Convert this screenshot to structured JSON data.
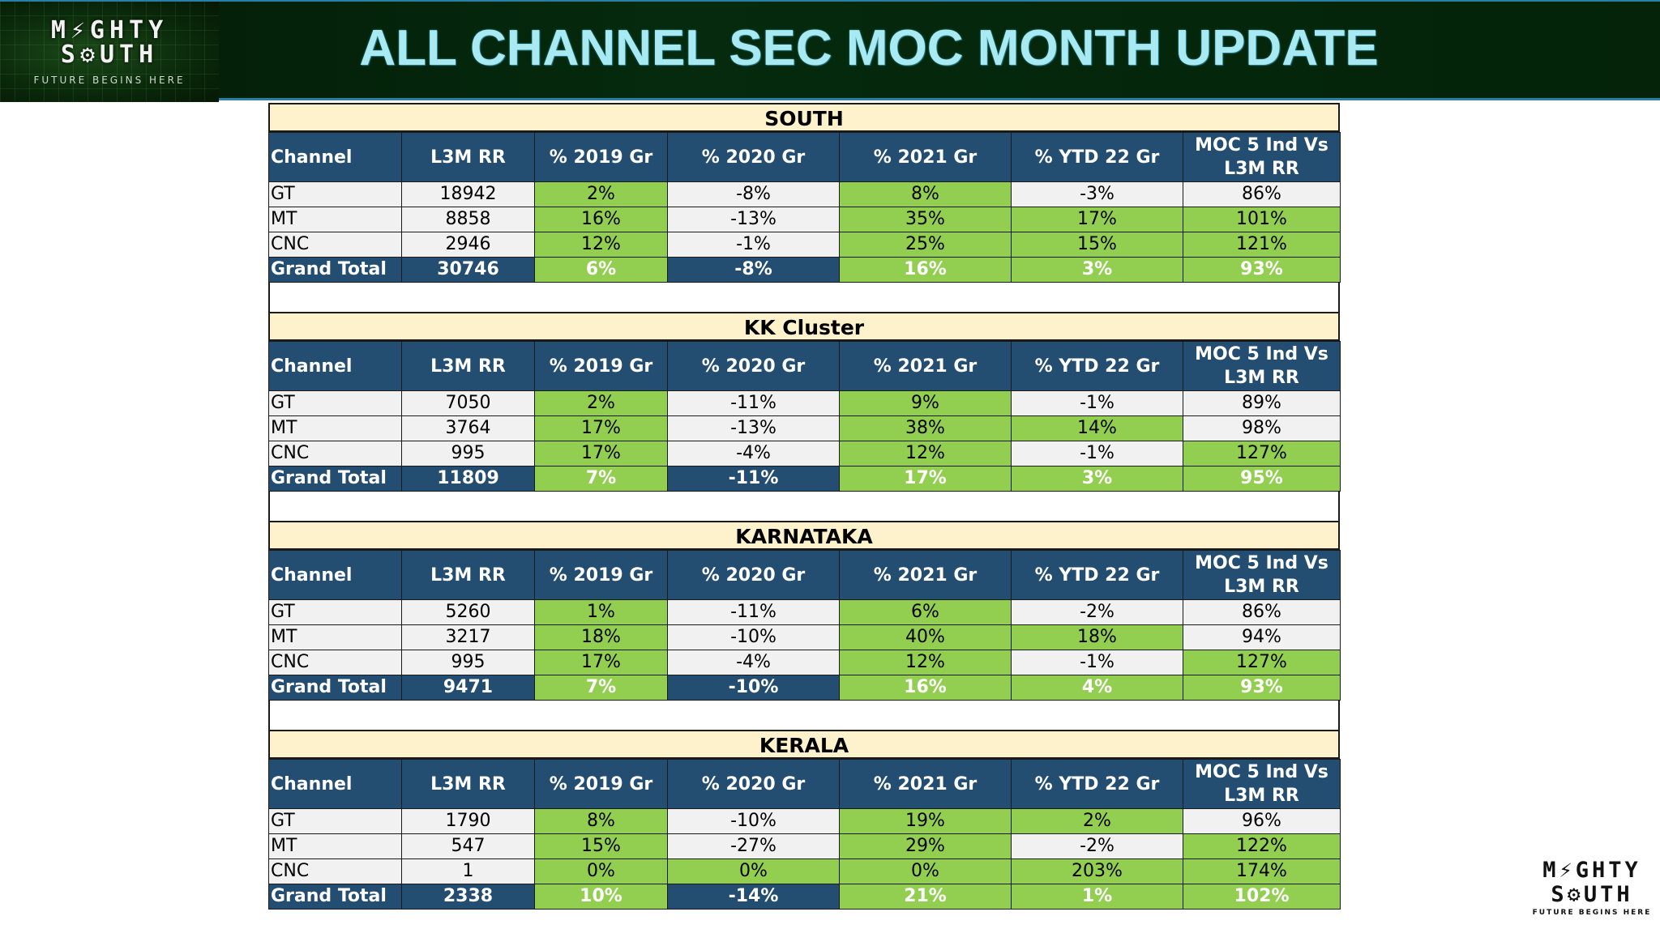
{
  "header": {
    "title": "ALL CHANNEL SEC MOC MONTH UPDATE",
    "logo_line1": "M⚡GHTY",
    "logo_line2": "S⚙UTH",
    "logo_tagline": "FUTURE BEGINS HERE"
  },
  "corner_logo": {
    "line1": "M⚡GHTY",
    "line2": "S⚙UTH",
    "tagline": "FUTURE BEGINS HERE"
  },
  "columns": [
    "Channel",
    "L3M RR",
    "% 2019 Gr",
    "% 2020 Gr",
    "% 2021 Gr",
    "% YTD 22 Gr",
    "MOC 5 Ind Vs L3M RR"
  ],
  "colors": {
    "header_blue": "#244d72",
    "green_fill": "#92cf50",
    "title_band": "#fdf2cb",
    "banner_title": "#a9e9f1"
  },
  "regions": [
    {
      "title": "SOUTH",
      "rows": [
        {
          "channel": "GT",
          "l3m": "18942",
          "g2019": "2%",
          "g2020": "-8%",
          "g2021": "8%",
          "ytd22": "-3%",
          "moc5": "86%"
        },
        {
          "channel": "MT",
          "l3m": "8858",
          "g2019": "16%",
          "g2020": "-13%",
          "g2021": "35%",
          "ytd22": "17%",
          "moc5": "101%"
        },
        {
          "channel": "CNC",
          "l3m": "2946",
          "g2019": "12%",
          "g2020": "-1%",
          "g2021": "25%",
          "ytd22": "15%",
          "moc5": "121%"
        }
      ],
      "total": {
        "channel": "Grand Total",
        "l3m": "30746",
        "g2019": "6%",
        "g2020": "-8%",
        "g2021": "16%",
        "ytd22": "3%",
        "moc5": "93%"
      }
    },
    {
      "title": "KK Cluster",
      "rows": [
        {
          "channel": "GT",
          "l3m": "7050",
          "g2019": "2%",
          "g2020": "-11%",
          "g2021": "9%",
          "ytd22": "-1%",
          "moc5": "89%"
        },
        {
          "channel": "MT",
          "l3m": "3764",
          "g2019": "17%",
          "g2020": "-13%",
          "g2021": "38%",
          "ytd22": "14%",
          "moc5": "98%"
        },
        {
          "channel": "CNC",
          "l3m": "995",
          "g2019": "17%",
          "g2020": "-4%",
          "g2021": "12%",
          "ytd22": "-1%",
          "moc5": "127%"
        }
      ],
      "total": {
        "channel": "Grand Total",
        "l3m": "11809",
        "g2019": "7%",
        "g2020": "-11%",
        "g2021": "17%",
        "ytd22": "3%",
        "moc5": "95%"
      }
    },
    {
      "title": "KARNATAKA",
      "rows": [
        {
          "channel": "GT",
          "l3m": "5260",
          "g2019": "1%",
          "g2020": "-11%",
          "g2021": "6%",
          "ytd22": "-2%",
          "moc5": "86%"
        },
        {
          "channel": "MT",
          "l3m": "3217",
          "g2019": "18%",
          "g2020": "-10%",
          "g2021": "40%",
          "ytd22": "18%",
          "moc5": "94%"
        },
        {
          "channel": "CNC",
          "l3m": "995",
          "g2019": "17%",
          "g2020": "-4%",
          "g2021": "12%",
          "ytd22": "-1%",
          "moc5": "127%"
        }
      ],
      "total": {
        "channel": "Grand Total",
        "l3m": "9471",
        "g2019": "7%",
        "g2020": "-10%",
        "g2021": "16%",
        "ytd22": "4%",
        "moc5": "93%"
      }
    },
    {
      "title": "KERALA",
      "rows": [
        {
          "channel": "GT",
          "l3m": "1790",
          "g2019": "8%",
          "g2020": "-10%",
          "g2021": "19%",
          "ytd22": "2%",
          "moc5": "96%"
        },
        {
          "channel": "MT",
          "l3m": "547",
          "g2019": "15%",
          "g2020": "-27%",
          "g2021": "29%",
          "ytd22": "-2%",
          "moc5": "122%"
        },
        {
          "channel": "CNC",
          "l3m": "1",
          "g2019": "0%",
          "g2020": "0%",
          "g2021": "0%",
          "ytd22": "203%",
          "moc5": "174%"
        }
      ],
      "total": {
        "channel": "Grand Total",
        "l3m": "2338",
        "g2019": "10%",
        "g2020": "-14%",
        "g2021": "21%",
        "ytd22": "1%",
        "moc5": "102%"
      }
    }
  ]
}
